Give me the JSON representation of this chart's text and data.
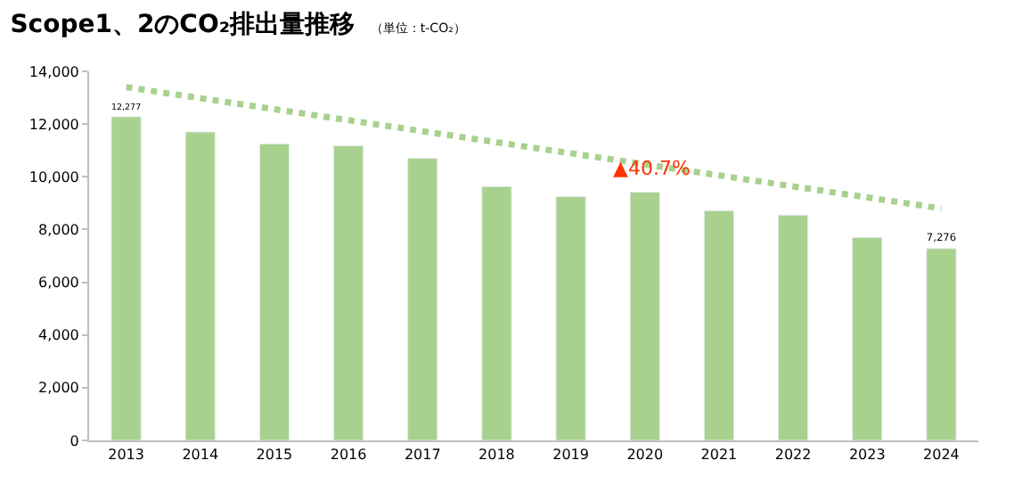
{
  "chart_data": {
    "type": "bar",
    "title": "Scope1、2のCO₂排出量推移",
    "subtitle": "（単位：t-CO₂）",
    "categories": [
      "2013",
      "2014",
      "2015",
      "2016",
      "2017",
      "2018",
      "2019",
      "2020",
      "2021",
      "2022",
      "2023",
      "2024"
    ],
    "series": [
      {
        "color": "#a9d18e",
        "values": [
          12277,
          11700,
          11250,
          11180,
          10700,
          9630,
          9250,
          9420,
          8720,
          8550,
          7700,
          7276
        ],
        "value_labels": [
          "12,277",
          null,
          null,
          null,
          null,
          null,
          null,
          null,
          null,
          null,
          null,
          "7,276"
        ]
      },
      {
        "type": "line",
        "color": "#a9d18e",
        "line_style": "dotted",
        "values": [
          13400,
          null,
          null,
          null,
          null,
          null,
          null,
          null,
          null,
          null,
          null,
          8800
        ]
      }
    ],
    "annotations": [
      "▲40.7%"
    ],
    "ylim": [
      0,
      14000
    ],
    "yticks": [
      {
        "value": 0,
        "label": "0"
      },
      {
        "value": 2000,
        "label": "2,000"
      },
      {
        "value": 4000,
        "label": "4,000"
      },
      {
        "value": 6000,
        "label": "6,000"
      },
      {
        "value": 8000,
        "label": "8,000"
      },
      {
        "value": 10000,
        "label": "10,000"
      },
      {
        "value": 12000,
        "label": "12,000"
      },
      {
        "value": 14000,
        "label": "14,000"
      }
    ],
    "grid": false
  }
}
